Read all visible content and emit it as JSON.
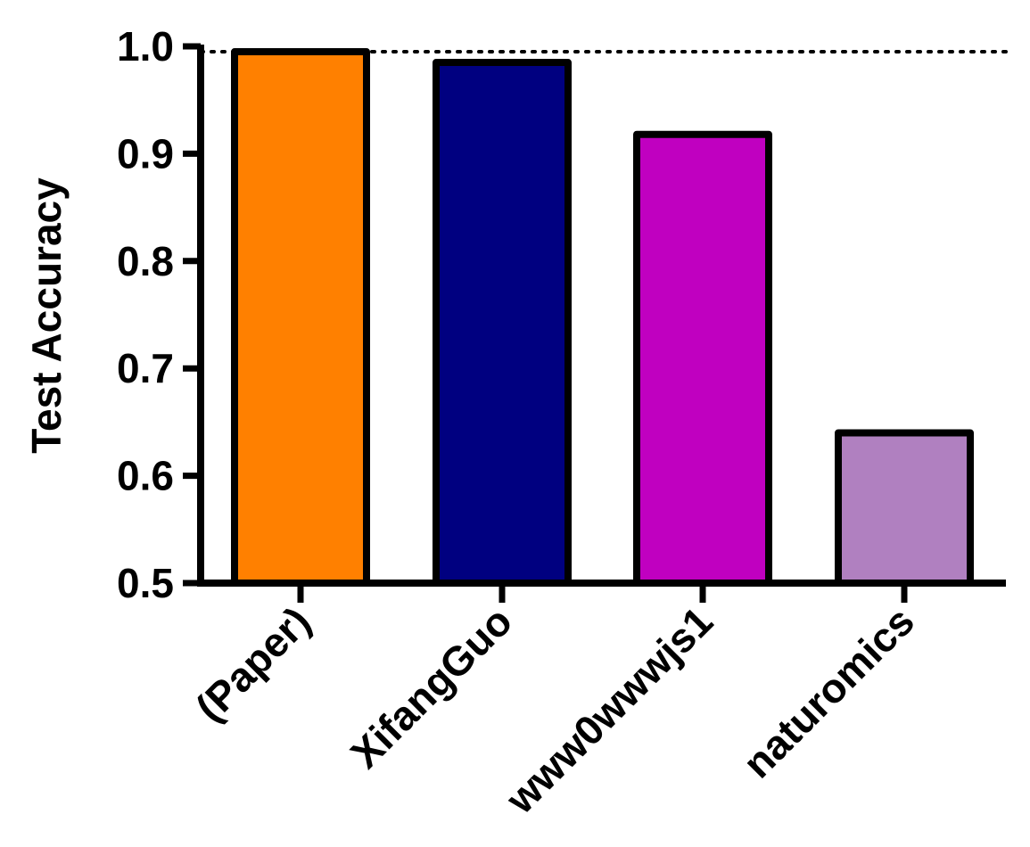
{
  "chart_data": {
    "type": "bar",
    "title": "",
    "xlabel": "",
    "ylabel": "Test Accuracy",
    "ylim": [
      0.5,
      1.0
    ],
    "yticks": [
      "0.5",
      "0.6",
      "0.7",
      "0.8",
      "0.9",
      "1.0"
    ],
    "categories": [
      "(Paper)",
      "XifangGuo",
      "www0wwwjs1",
      "naturomics"
    ],
    "values": [
      0.995,
      0.985,
      0.918,
      0.64
    ],
    "colors": [
      "#FF8000",
      "#000080",
      "#C000C0",
      "#B080C0"
    ],
    "reference_line": 0.995,
    "grid": false,
    "legend": "none"
  }
}
